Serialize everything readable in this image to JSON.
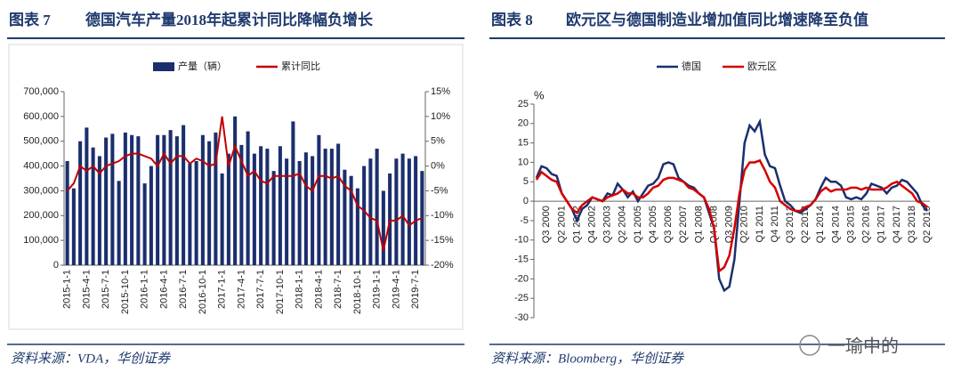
{
  "chart_data": [
    {
      "type": "combo",
      "figure_label": "图表 7",
      "title": "德国汽车产量2018年起累计同比降幅负增长",
      "source": "资料来源：VDA，华创证券",
      "categories": [
        "2015-1-1",
        null,
        null,
        "2015-4-1",
        null,
        null,
        "2015-7-1",
        null,
        null,
        "2015-10-1",
        null,
        null,
        "2016-1-1",
        null,
        null,
        "2016-4-1",
        null,
        null,
        "2016-7-1",
        null,
        null,
        "2016-10-1",
        null,
        null,
        "2017-1-1",
        null,
        null,
        "2017-4-1",
        null,
        null,
        "2017-7-1",
        null,
        null,
        "2017-10-1",
        null,
        null,
        "2018-1-1",
        null,
        null,
        "2018-4-1",
        null,
        null,
        "2018-7-1",
        null,
        null,
        "2018-10-1",
        null,
        null,
        "2019-1-1",
        null,
        null,
        "2019-4-1",
        null,
        null,
        "2019-7-1",
        null
      ],
      "series": [
        {
          "name": "产量（辆）",
          "type": "bar",
          "color": "#1b2f6e",
          "values": [
            420000,
            310000,
            500000,
            555000,
            475000,
            440000,
            515000,
            530000,
            340000,
            535000,
            525000,
            520000,
            330000,
            400000,
            525000,
            525000,
            545000,
            520000,
            565000,
            410000,
            420000,
            525000,
            500000,
            535000,
            370000,
            450000,
            600000,
            485000,
            540000,
            450000,
            480000,
            470000,
            380000,
            480000,
            430000,
            580000,
            420000,
            455000,
            440000,
            525000,
            470000,
            470000,
            490000,
            385000,
            360000,
            310000,
            400000,
            430000,
            470000,
            300000,
            370000,
            430000,
            450000,
            430000,
            440000,
            380000
          ]
        },
        {
          "name": "累计同比",
          "type": "line",
          "axis": "y2",
          "color": "#c00000",
          "values": [
            -5,
            -3.5,
            0,
            -1,
            0,
            -1.5,
            0,
            0.5,
            1,
            2,
            2.5,
            2.5,
            2,
            1.5,
            0,
            2.5,
            0.5,
            2,
            2,
            0.5,
            1.5,
            1,
            0,
            0.5,
            10,
            0,
            4,
            1,
            -2,
            -1,
            -3,
            -3.5,
            -2,
            -2,
            -2,
            -2,
            -1.5,
            -4,
            -5,
            -2,
            -2,
            -2.5,
            -2,
            -4,
            -5,
            -8,
            -9,
            -10.5,
            -11,
            -17,
            -11,
            -11,
            -10,
            -12,
            -11,
            -10.5
          ]
        }
      ],
      "ylim": [
        0,
        700000
      ],
      "yticks": [
        0,
        {
          "value": 100000,
          "label": "100,000"
        },
        {
          "value": 200000,
          "label": "200,000"
        },
        {
          "value": 300000,
          "label": "300,000"
        },
        {
          "value": 400000,
          "label": "400,000"
        },
        {
          "value": 500000,
          "label": "500,000"
        },
        {
          "value": 600000,
          "label": "600,000"
        },
        {
          "value": 700000,
          "label": "700,000"
        }
      ],
      "y2lim": [
        -20,
        15
      ],
      "y2ticks": [
        {
          "value": -20,
          "label": "-20%"
        },
        {
          "value": -15,
          "label": "-15%"
        },
        {
          "value": -10,
          "label": "-10%"
        },
        {
          "value": -5,
          "label": "-5%"
        },
        {
          "value": 0,
          "label": "0%"
        },
        {
          "value": 5,
          "label": "5%"
        },
        {
          "value": 10,
          "label": "10%"
        },
        {
          "value": 15,
          "label": "15%"
        }
      ],
      "legend": "top",
      "grid": false
    },
    {
      "type": "line",
      "figure_label": "图表 8",
      "title": "欧元区与德国制造业增加值同比增速降至负值",
      "source": "资料来源：Bloomberg，华创证券",
      "y_unit": "%",
      "categories": [
        null,
        null,
        "Q3 2000",
        null,
        null,
        "Q2 2001",
        null,
        null,
        "Q1 2002",
        null,
        null,
        "Q4 2002",
        null,
        null,
        "Q3 2003",
        null,
        null,
        "Q2 2004",
        null,
        null,
        "Q1 2005",
        null,
        null,
        "Q4 2005",
        null,
        null,
        "Q3 2006",
        null,
        null,
        "Q2 2007",
        null,
        null,
        "Q1 2008",
        null,
        null,
        "Q4 2008",
        null,
        null,
        "Q3 2009",
        null,
        null,
        "Q2 2010",
        null,
        null,
        "Q1 2011",
        null,
        null,
        "Q4 2011",
        null,
        null,
        "Q3 2012",
        null,
        null,
        "Q2 2013",
        null,
        null,
        "Q1 2014",
        null,
        null,
        "Q4 2014",
        null,
        null,
        "Q3 2015",
        null,
        null,
        "Q2 2016",
        null,
        null,
        "Q1 2017",
        null,
        null,
        "Q4 2017",
        null,
        null,
        "Q3 2018",
        null,
        null,
        "Q2 2019"
      ],
      "series": [
        {
          "name": "德国",
          "color": "#1b2f6e",
          "values": [
            6,
            9,
            8.5,
            7,
            6.5,
            2,
            0,
            -2,
            -5,
            -2,
            -1,
            1,
            0.5,
            0,
            2,
            1.5,
            4.5,
            3,
            1,
            2.5,
            0,
            2,
            4,
            4.5,
            6,
            9.5,
            10,
            9.5,
            6,
            5,
            4,
            3.5,
            2,
            1,
            -3,
            -7,
            -20,
            -23,
            -22,
            -15,
            0,
            15,
            19.5,
            18,
            20.5,
            12,
            9,
            8.5,
            4,
            0,
            -1,
            -2.5,
            -3,
            -2,
            -1,
            0.5,
            3.5,
            6,
            5,
            5,
            4,
            1,
            0.5,
            1,
            0.5,
            2,
            4.5,
            4,
            3.5,
            2,
            3.5,
            4,
            5.5,
            5,
            3.5,
            2,
            -1,
            -2.5
          ]
        },
        {
          "name": "欧元区",
          "color": "#d40000",
          "values": [
            5.5,
            7.5,
            6.5,
            5.5,
            5,
            2,
            0,
            -2,
            -3,
            -1,
            0,
            1,
            0.5,
            0,
            1,
            1.5,
            2,
            3,
            2,
            2,
            1,
            1,
            2,
            3.5,
            4,
            5.5,
            6,
            6,
            5.5,
            5,
            3.5,
            3,
            2,
            1,
            -2,
            -7,
            -18,
            -17,
            -14,
            -7,
            2,
            8,
            10,
            10,
            10.5,
            8,
            5,
            3.5,
            0,
            -1,
            -2,
            -2.5,
            -2.5,
            -1.5,
            -1,
            0.5,
            2.5,
            3.5,
            2.5,
            3,
            3,
            3,
            3.5,
            3.5,
            3,
            3.5,
            3,
            3,
            3,
            3.5,
            4.5,
            5,
            4,
            3,
            2,
            0,
            -0.5,
            -1.5
          ]
        }
      ],
      "ylim": [
        -30,
        25
      ],
      "yticks": [
        -30,
        -25,
        -20,
        -15,
        -10,
        -5,
        0,
        5,
        10,
        15,
        20,
        25
      ],
      "legend": "top",
      "grid": false
    }
  ],
  "watermark": "一瑜中的"
}
